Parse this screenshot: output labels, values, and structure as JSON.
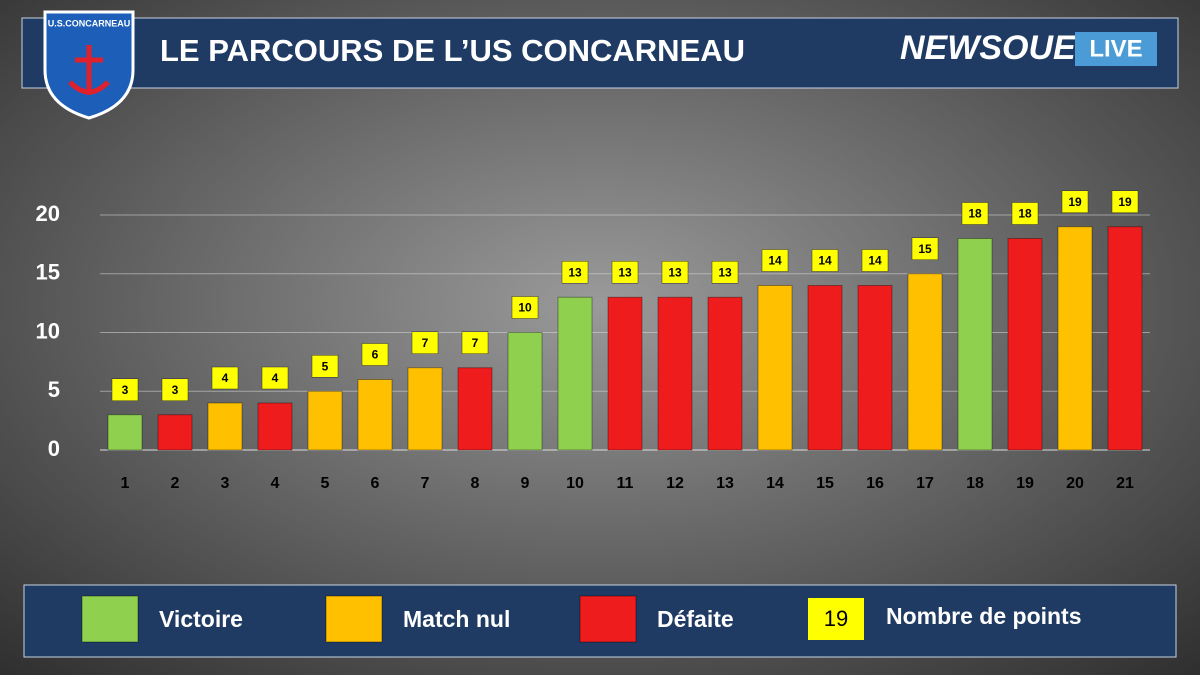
{
  "header": {
    "logo_text": "U.S.CONCARNEAU",
    "brand": "NEWSOUEST",
    "brand_tag": "LIVE"
  },
  "chart_data": {
    "type": "bar",
    "title": "LE PARCOURS DE L’US CONCARNEAU",
    "categories": [
      "1",
      "2",
      "3",
      "4",
      "5",
      "6",
      "7",
      "8",
      "9",
      "10",
      "11",
      "12",
      "13",
      "14",
      "15",
      "16",
      "17",
      "18",
      "19",
      "20",
      "21"
    ],
    "values": [
      3,
      3,
      4,
      4,
      5,
      6,
      7,
      7,
      10,
      13,
      13,
      13,
      13,
      14,
      14,
      14,
      15,
      18,
      18,
      19,
      19
    ],
    "bar_colors": [
      "#8fd14f",
      "#ee1c1c",
      "#ffc000",
      "#ee1c1c",
      "#ffc000",
      "#ffc000",
      "#ffc000",
      "#ee1c1c",
      "#8fd14f",
      "#8fd14f",
      "#ee1c1c",
      "#ee1c1c",
      "#ee1c1c",
      "#ffc000",
      "#ee1c1c",
      "#ee1c1c",
      "#ffc000",
      "#8fd14f",
      "#ee1c1c",
      "#ffc000",
      "#ee1c1c"
    ],
    "ylim": [
      0,
      20
    ],
    "yticks": [
      0,
      5,
      10,
      15,
      20
    ],
    "grid": true,
    "legend": [
      {
        "name": "Victoire",
        "color": "#8fd14f"
      },
      {
        "name": "Match nul",
        "color": "#ffc000"
      },
      {
        "name": "Défaite",
        "color": "#ee1c1c"
      },
      {
        "name": "Nombre de points",
        "sample": "19",
        "color": "#ffff00"
      }
    ]
  }
}
